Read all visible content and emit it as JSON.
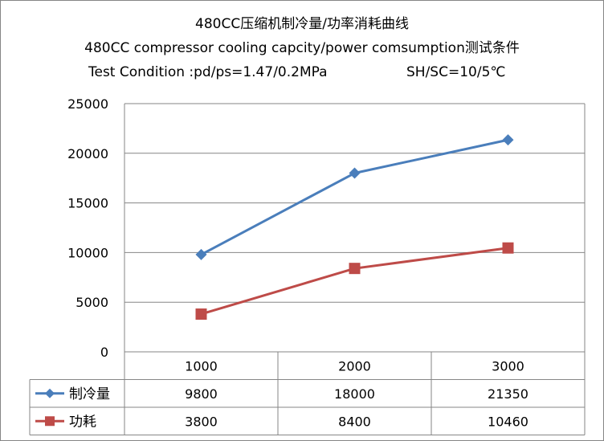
{
  "chart_data": {
    "type": "line",
    "title": "480CC压缩机制冷量/功率消耗曲线",
    "subtitle": "480CC compressor cooling capcity/power comsumption测试条件",
    "condition": "Test Condition :pd/ps=1.47/0.2MPa",
    "condition_right": "SH/SC=10/5℃",
    "categories": [
      "1000",
      "2000",
      "3000"
    ],
    "ylim": [
      0,
      25000
    ],
    "yticks": [
      "0",
      "5000",
      "10000",
      "15000",
      "20000",
      "25000"
    ],
    "grid": true,
    "legend": "data-table",
    "series": [
      {
        "name": "制冷量",
        "values": [
          9800,
          18000,
          21350
        ],
        "table_values": [
          "9800",
          "18000",
          "21350"
        ],
        "color": "#4a7ebb",
        "marker": "diamond"
      },
      {
        "name": "功耗",
        "values": [
          3800,
          8400,
          10460
        ],
        "table_values": [
          "3800",
          "8400",
          "10460"
        ],
        "color": "#be4b48",
        "marker": "square"
      }
    ]
  }
}
